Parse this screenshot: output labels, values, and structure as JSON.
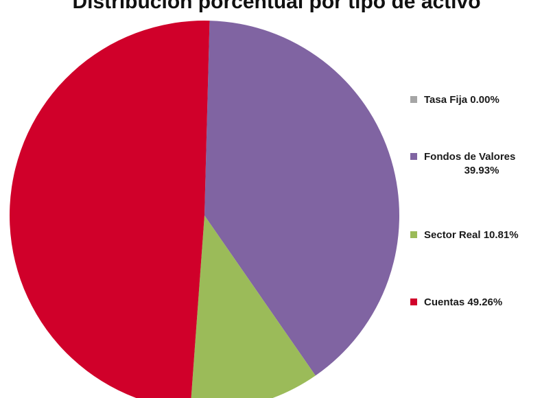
{
  "chart_data": {
    "type": "pie",
    "title": "Distribución porcentual por tipo de activo",
    "legend_position": "right",
    "slices": [
      {
        "label": "Tasa Fija",
        "value": 0.0,
        "display": "0.00%",
        "color": "#a5a5a5"
      },
      {
        "label": "Fondos de Valores",
        "value": 39.93,
        "display": "39.93%",
        "color": "#8064a2"
      },
      {
        "label": "Sector Real",
        "value": 10.81,
        "display": "10.81%",
        "color": "#9bbb59"
      },
      {
        "label": "Cuentas",
        "value": 49.26,
        "display": "49.26%",
        "color": "#d0002a"
      }
    ]
  },
  "legend": {
    "items": [
      {
        "line1": "Tasa Fija 0.00%",
        "line2": ""
      },
      {
        "line1": "Fondos de Valores",
        "line2": "39.93%"
      },
      {
        "line1": "Sector Real 10.81%",
        "line2": ""
      },
      {
        "line1": "Cuentas 49.26%",
        "line2": ""
      }
    ]
  }
}
